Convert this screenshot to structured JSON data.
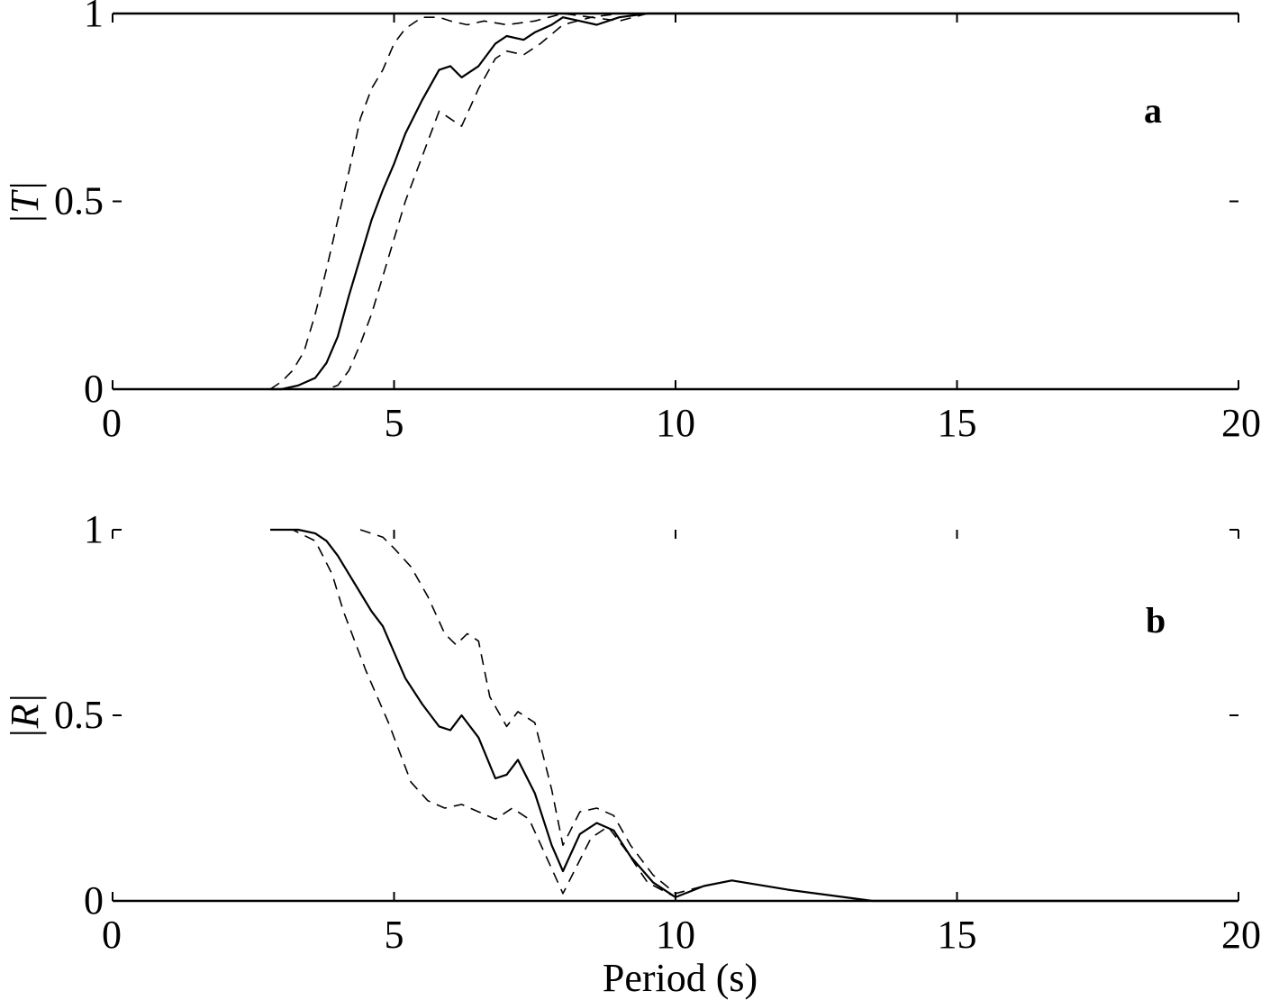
{
  "chart_data": [
    {
      "type": "line",
      "panel_label": "a",
      "xlabel": "",
      "ylabel": "|T|",
      "xlim": [
        0,
        20
      ],
      "ylim": [
        0,
        1
      ],
      "xticks": [
        "0",
        "5",
        "10",
        "15",
        "20"
      ],
      "yticks": [
        "0",
        "0.5",
        "1"
      ],
      "grid": false,
      "series": [
        {
          "style": "solid",
          "x": [
            2.8,
            3.0,
            3.3,
            3.6,
            3.8,
            4.0,
            4.2,
            4.4,
            4.6,
            4.8,
            5.0,
            5.2,
            5.5,
            5.8,
            6.0,
            6.2,
            6.5,
            6.8,
            7.0,
            7.3,
            7.5,
            7.8,
            8.0,
            8.3,
            8.6,
            9.0,
            9.5,
            10.0,
            11.0,
            14.0,
            20.0
          ],
          "y": [
            0.0,
            0.0,
            0.01,
            0.03,
            0.07,
            0.14,
            0.25,
            0.35,
            0.45,
            0.53,
            0.6,
            0.68,
            0.77,
            0.85,
            0.86,
            0.83,
            0.86,
            0.92,
            0.94,
            0.93,
            0.95,
            0.97,
            0.99,
            0.98,
            0.97,
            0.99,
            1.0,
            1.0,
            1.0,
            1.0,
            1.0
          ]
        },
        {
          "style": "dashed",
          "x": [
            2.8,
            3.0,
            3.2,
            3.4,
            3.6,
            3.8,
            4.0,
            4.2,
            4.4,
            4.6,
            4.8,
            5.0,
            5.2,
            5.5,
            5.8,
            6.0,
            6.3,
            6.6,
            7.0,
            7.5,
            8.0,
            8.5,
            9.0,
            10.0,
            20.0
          ],
          "y": [
            0.0,
            0.02,
            0.05,
            0.1,
            0.2,
            0.32,
            0.45,
            0.58,
            0.72,
            0.8,
            0.85,
            0.92,
            0.96,
            0.99,
            0.99,
            0.98,
            0.97,
            0.98,
            0.97,
            0.98,
            1.0,
            0.99,
            1.0,
            1.0,
            1.0
          ]
        },
        {
          "style": "dashed",
          "x": [
            3.6,
            3.8,
            4.0,
            4.2,
            4.4,
            4.6,
            4.8,
            5.0,
            5.2,
            5.5,
            5.8,
            6.0,
            6.2,
            6.5,
            6.8,
            7.0,
            7.3,
            7.6,
            8.0,
            8.5,
            9.0,
            9.5,
            10.0,
            20.0
          ],
          "y": [
            0.0,
            0.0,
            0.01,
            0.05,
            0.12,
            0.2,
            0.3,
            0.4,
            0.5,
            0.62,
            0.74,
            0.72,
            0.7,
            0.8,
            0.88,
            0.9,
            0.89,
            0.92,
            0.97,
            0.99,
            0.98,
            1.0,
            1.0,
            1.0
          ]
        }
      ]
    },
    {
      "type": "line",
      "panel_label": "b",
      "xlabel": "Period (s)",
      "ylabel": "|R|",
      "xlim": [
        0,
        20
      ],
      "ylim": [
        0,
        1
      ],
      "xticks": [
        "0",
        "5",
        "10",
        "15",
        "20"
      ],
      "yticks": [
        "0",
        "0.5",
        "1"
      ],
      "grid": false,
      "series": [
        {
          "style": "solid",
          "x": [
            2.8,
            3.0,
            3.3,
            3.6,
            3.8,
            4.0,
            4.2,
            4.4,
            4.6,
            4.8,
            5.0,
            5.2,
            5.5,
            5.8,
            6.0,
            6.2,
            6.5,
            6.8,
            7.0,
            7.2,
            7.5,
            7.8,
            8.0,
            8.3,
            8.6,
            8.9,
            9.2,
            9.6,
            10.0,
            10.5,
            11.0,
            12.0,
            13.0,
            13.5,
            20.0
          ],
          "y": [
            1.0,
            1.0,
            1.0,
            0.99,
            0.97,
            0.93,
            0.88,
            0.83,
            0.78,
            0.74,
            0.67,
            0.6,
            0.53,
            0.47,
            0.46,
            0.5,
            0.44,
            0.33,
            0.34,
            0.38,
            0.29,
            0.15,
            0.08,
            0.18,
            0.21,
            0.19,
            0.12,
            0.05,
            0.01,
            0.04,
            0.055,
            0.03,
            0.01,
            0.0,
            0.0
          ]
        },
        {
          "style": "dashed",
          "x": [
            4.4,
            4.6,
            4.8,
            5.0,
            5.3,
            5.6,
            5.9,
            6.1,
            6.3,
            6.5,
            6.7,
            7.0,
            7.2,
            7.5,
            7.8,
            8.0,
            8.3,
            8.6,
            8.9,
            9.2,
            9.6,
            10.0,
            10.5,
            11.0,
            12.0,
            13.0,
            13.5,
            20.0
          ],
          "y": [
            1.0,
            0.99,
            0.98,
            0.95,
            0.9,
            0.82,
            0.72,
            0.69,
            0.72,
            0.7,
            0.55,
            0.47,
            0.51,
            0.48,
            0.3,
            0.15,
            0.24,
            0.25,
            0.23,
            0.15,
            0.07,
            0.02,
            0.04,
            0.055,
            0.03,
            0.01,
            0.0,
            0.0
          ]
        },
        {
          "style": "dashed",
          "x": [
            2.8,
            3.2,
            3.6,
            3.9,
            4.1,
            4.3,
            4.5,
            4.7,
            4.9,
            5.1,
            5.3,
            5.6,
            5.9,
            6.2,
            6.5,
            6.8,
            7.1,
            7.4,
            7.7,
            8.0,
            8.2,
            8.5,
            8.8,
            9.1,
            9.5,
            10.0,
            10.5,
            11.0,
            12.0,
            13.0,
            13.5,
            20.0
          ],
          "y": [
            1.0,
            1.0,
            0.97,
            0.88,
            0.78,
            0.7,
            0.62,
            0.55,
            0.48,
            0.4,
            0.32,
            0.27,
            0.25,
            0.26,
            0.24,
            0.22,
            0.25,
            0.22,
            0.12,
            0.02,
            0.08,
            0.17,
            0.2,
            0.14,
            0.05,
            0.01,
            0.04,
            0.055,
            0.03,
            0.01,
            0.0,
            0.0
          ]
        }
      ]
    }
  ]
}
